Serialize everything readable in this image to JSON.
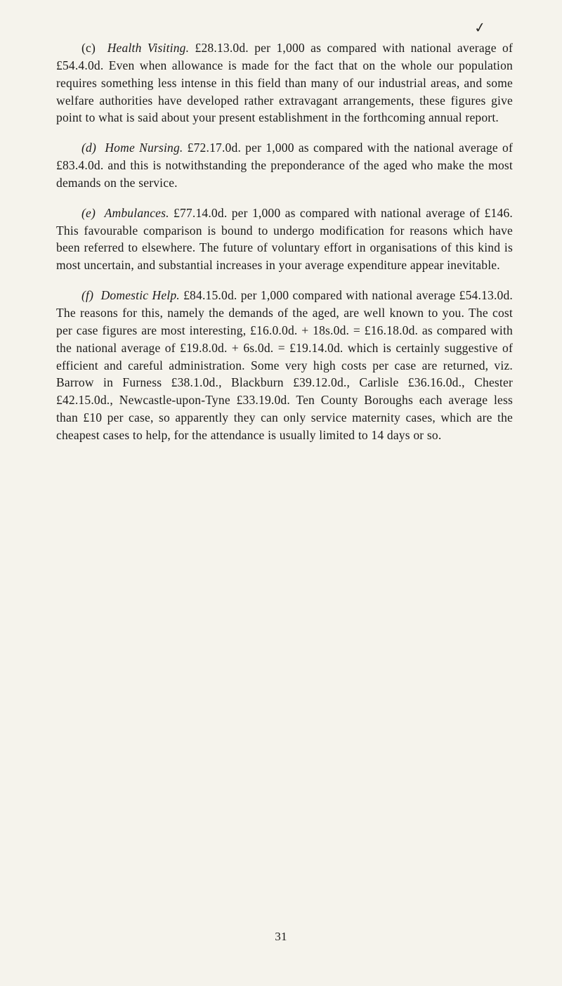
{
  "tick_mark": "✓",
  "paragraphs": {
    "c": {
      "label": "(c)",
      "title": "Health Visiting. ",
      "body": "£28.13.0d. per 1,000 as compared with national average of £54.4.0d. Even when allowance is made for the fact that on the whole our population requires something less intense in this field than many of our industrial areas, and some welfare authorities have developed rather extravagant arrangements, these figures give point to what is said about your present establishment in the forthcoming annual report."
    },
    "d": {
      "label": "(d)",
      "title": "Home Nursing. ",
      "body": "£72.17.0d. per 1,000 as compared with the national average of £83.4.0d. and this is notwithstanding the preponderance of the aged who make the most demands on the service."
    },
    "e": {
      "label": "(e)",
      "title": "Ambulances. ",
      "body": "£77.14.0d. per 1,000 as compared with national average of £146. This favourable comparison is bound to undergo modification for reasons which have been referred to elsewhere. The future of voluntary effort in organisations of this kind is most uncertain, and substantial increases in your average expenditure appear inevitable."
    },
    "f": {
      "label": "(f)",
      "title": "Domestic Help. ",
      "body": "£84.15.0d. per 1,000 compared with national average £54.13.0d. The reasons for this, namely the demands of the aged, are well known to you. The cost per case figures are most interesting, £16.0.0d. + 18s.0d. = £16.18.0d. as compared with the national average of £19.8.0d. + 6s.0d. = £19.14.0d. which is certainly suggestive of efficient and care­ful administration. Some very high costs per case are returned, viz. Barrow in Furness £38.1.0d., Blackburn £39.12.0d., Carlisle £36.16.0d., Chester £42.15.0d., Newcastle-upon-Tyne £33.19.0d. Ten County Boroughs each average less than £10 per case, so apparently they can only service maternity cases, which are the cheapest cases to help, for the attendance is usually limited to 14 days or so."
    }
  },
  "page_number": "31"
}
